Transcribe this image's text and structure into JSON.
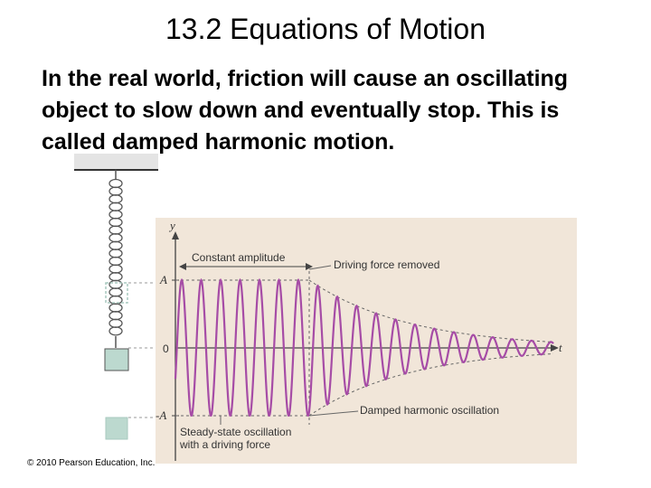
{
  "title": "13.2 Equations of Motion",
  "body_text": "In the real world, friction will cause an oscillating object to slow down and eventually stop. This is called damped harmonic motion.",
  "copyright": "© 2010 Pearson Education, Inc.",
  "figure": {
    "axis_y": "y",
    "axis_t": "t",
    "label_A_top": "A",
    "label_zero": "0",
    "label_A_bottom": "-A",
    "constant_amplitude": "Constant amplitude",
    "driving_force_removed": "Driving force removed",
    "damped_oscillation": "Damped harmonic oscillation",
    "steady_state_line1": "Steady-state oscillation",
    "steady_state_line2": "with a driving force",
    "wave_color": "#a64ca6",
    "panel_color": "#f1e6d9",
    "mass_color": "#bcd9cf"
  }
}
